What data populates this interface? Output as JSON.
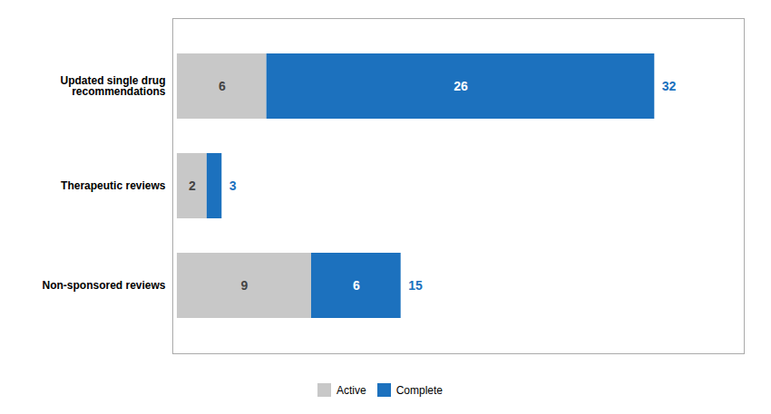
{
  "chart_data": {
    "type": "bar",
    "orientation": "horizontal",
    "stacked": true,
    "categories": [
      "Updated single drug\nrecommendations",
      "Therapeutic reviews",
      "Non-sponsored reviews"
    ],
    "series": [
      {
        "name": "Active",
        "color": "#c8c8c8",
        "values": [
          6,
          2,
          9
        ]
      },
      {
        "name": "Complete",
        "color": "#1c71be",
        "values": [
          26,
          1,
          6
        ],
        "value_labels": [
          "26",
          null,
          "6"
        ]
      }
    ],
    "totals": [
      32,
      3,
      15
    ],
    "xlim": [
      -0.3,
      38
    ],
    "tick_labels": "y",
    "grid": false,
    "legend": "bottom",
    "data_labels": true
  }
}
